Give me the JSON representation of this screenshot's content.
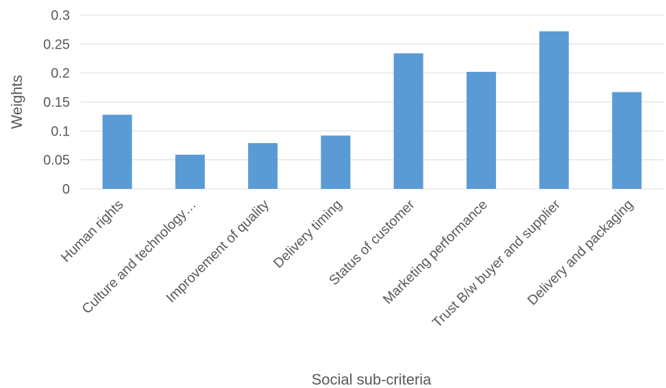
{
  "chart_data": {
    "type": "bar",
    "title": "",
    "xlabel": "Social sub-criteria",
    "ylabel": "Weights",
    "ylim": [
      0,
      0.3
    ],
    "yticks": [
      "0",
      "0.05",
      "0.1",
      "0.15",
      "0.2",
      "0.25",
      "0.3"
    ],
    "grid": true,
    "bar_color": "#5b9bd5",
    "categories": [
      "Human rights",
      "Culture and technology…",
      "Improvement of quality",
      "Delivery timing",
      "Status of customer",
      "Marketing performance",
      "Trust B/w buyer and supplier",
      "Delivery and packaging"
    ],
    "values": [
      0.128,
      0.059,
      0.079,
      0.092,
      0.234,
      0.202,
      0.272,
      0.167
    ]
  }
}
